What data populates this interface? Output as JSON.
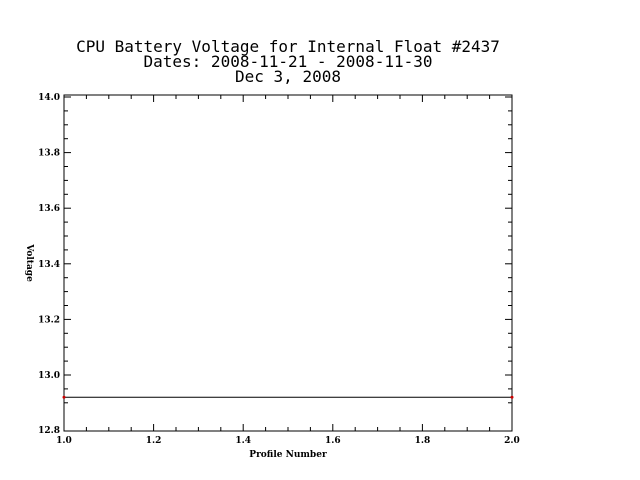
{
  "chart_data": {
    "type": "line",
    "title": [
      "CPU Battery Voltage for Internal Float #2437",
      "Dates:  2008-11-21 -  2008-11-30",
      "Dec  3, 2008"
    ],
    "xlabel": "Profile Number",
    "ylabel": "Voltage",
    "xlim": [
      1.0,
      2.0
    ],
    "ylim": [
      12.9,
      14.0
    ],
    "x_ticks": [
      "1.0",
      "1.2",
      "1.4",
      "1.6",
      "1.8",
      "2.0"
    ],
    "y_ticks": [
      "12.8",
      "13.0",
      "13.2",
      "13.4",
      "13.6",
      "13.8",
      "14.0"
    ],
    "series": [
      {
        "x": [
          1.0,
          2.0
        ],
        "y": [
          12.92,
          12.92
        ],
        "line_color": "#000000",
        "point_color": "#cc0000"
      }
    ],
    "grid": false
  }
}
